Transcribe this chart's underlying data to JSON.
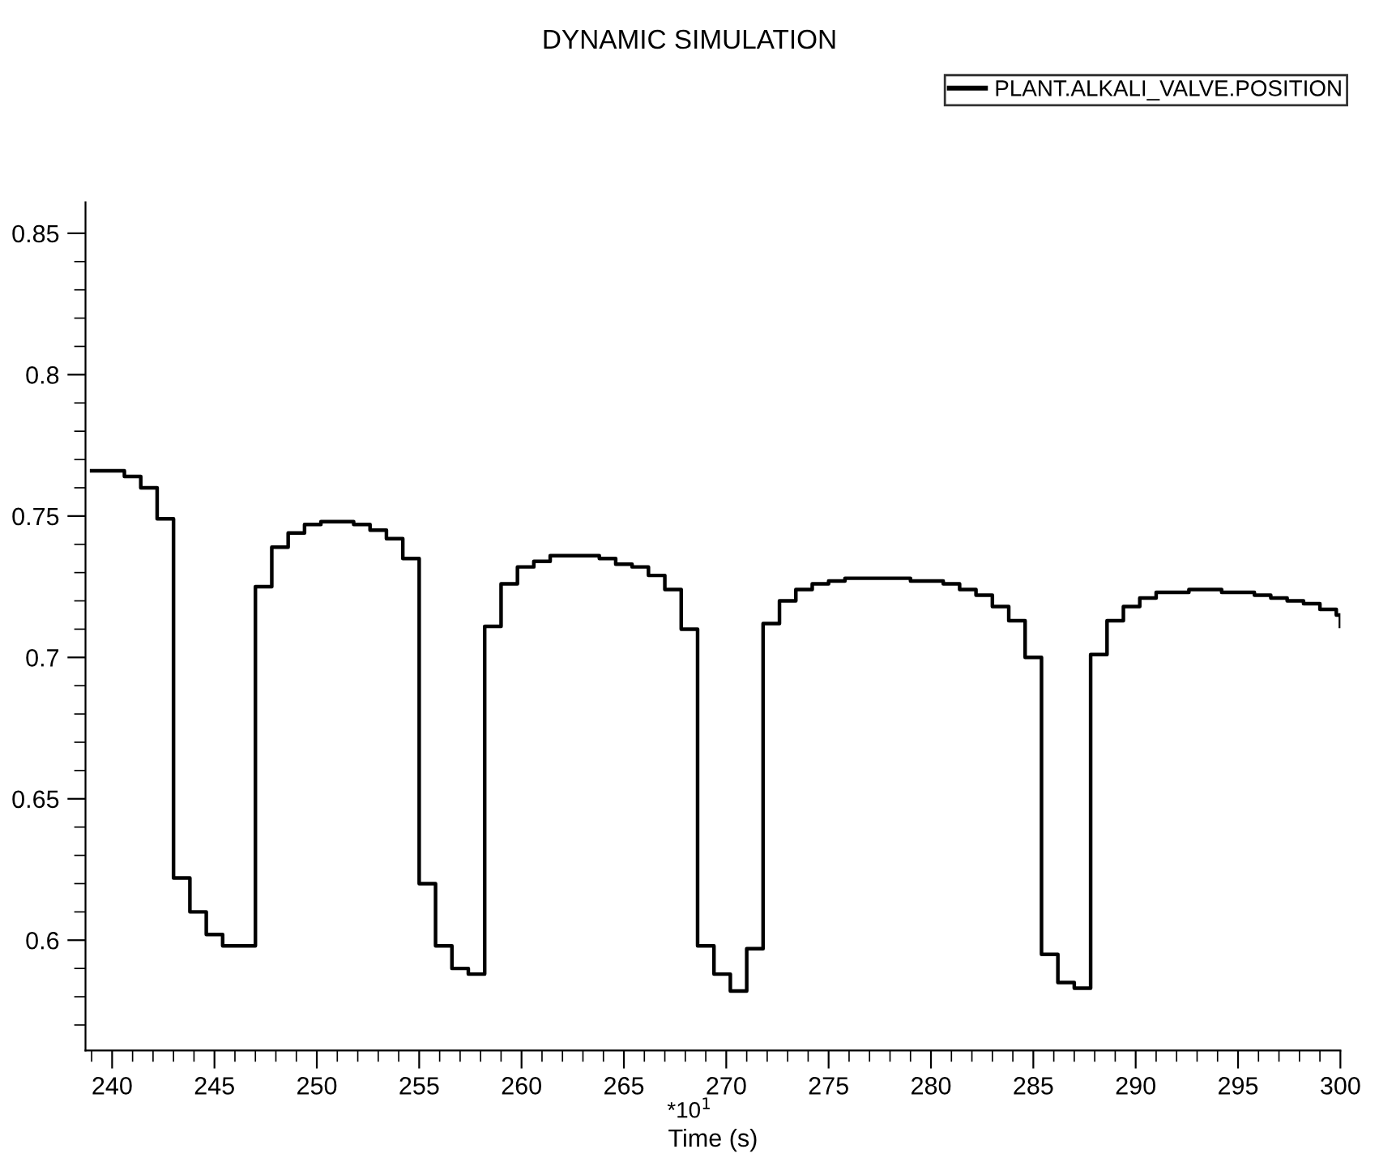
{
  "chart_data": {
    "type": "step",
    "title": "DYNAMIC SIMULATION",
    "xlabel": "Time (s)",
    "annotations": [
      "*10$^{1}$"
    ],
    "x": [
      239.0,
      239.8,
      240.6,
      241.4,
      242.2,
      243.0,
      243.8,
      244.6,
      245.4,
      246.2,
      247.0,
      247.8,
      248.6,
      249.4,
      250.2,
      251.0,
      251.8,
      252.6,
      253.4,
      254.2,
      255.0,
      255.8,
      256.6,
      257.4,
      258.2,
      259.0,
      259.8,
      260.6,
      261.4,
      262.2,
      263.0,
      263.8,
      264.6,
      265.4,
      266.2,
      267.0,
      267.8,
      268.6,
      269.4,
      270.2,
      271.0,
      271.8,
      272.6,
      273.4,
      274.2,
      275.0,
      275.8,
      276.6,
      277.4,
      278.2,
      279.0,
      279.8,
      280.6,
      281.4,
      282.2,
      283.0,
      283.8,
      284.6,
      285.4,
      286.2,
      287.0,
      287.8,
      288.6,
      289.4,
      290.2,
      291.0,
      291.8,
      292.6,
      293.4,
      294.2,
      295.0,
      295.8,
      296.6,
      297.4,
      298.2,
      299.0,
      299.8,
      300.0
    ],
    "series": [
      {
        "name": "PLANT.ALKALI_VALVE.POSITION",
        "color": "#000000",
        "values": [
          0.766,
          0.766,
          0.764,
          0.76,
          0.749,
          0.622,
          0.61,
          0.602,
          0.598,
          0.598,
          0.725,
          0.739,
          0.744,
          0.747,
          0.748,
          0.748,
          0.747,
          0.745,
          0.742,
          0.735,
          0.62,
          0.598,
          0.59,
          0.588,
          0.711,
          0.726,
          0.732,
          0.734,
          0.736,
          0.736,
          0.736,
          0.735,
          0.733,
          0.732,
          0.729,
          0.724,
          0.71,
          0.598,
          0.588,
          0.582,
          0.597,
          0.712,
          0.72,
          0.724,
          0.726,
          0.727,
          0.728,
          0.728,
          0.728,
          0.728,
          0.727,
          0.727,
          0.726,
          0.724,
          0.722,
          0.718,
          0.713,
          0.7,
          0.595,
          0.585,
          0.583,
          0.701,
          0.713,
          0.718,
          0.721,
          0.723,
          0.723,
          0.724,
          0.724,
          0.723,
          0.723,
          0.722,
          0.721,
          0.72,
          0.719,
          0.717,
          0.715,
          0.711
        ]
      }
    ],
    "xlim": [
      238.7,
      300
    ],
    "ylim": [
      0.561,
      0.861
    ],
    "xticks": [
      {
        "value": 239,
        "label": null
      },
      240,
      {
        "value": 241,
        "label": null
      },
      {
        "value": 242,
        "label": null
      },
      {
        "value": 243,
        "label": null
      },
      {
        "value": 244,
        "label": null
      },
      245,
      {
        "value": 246,
        "label": null
      },
      {
        "value": 247,
        "label": null
      },
      {
        "value": 248,
        "label": null
      },
      {
        "value": 249,
        "label": null
      },
      250,
      {
        "value": 251,
        "label": null
      },
      {
        "value": 252,
        "label": null
      },
      {
        "value": 253,
        "label": null
      },
      {
        "value": 254,
        "label": null
      },
      255,
      {
        "value": 256,
        "label": null
      },
      {
        "value": 257,
        "label": null
      },
      {
        "value": 258,
        "label": null
      },
      {
        "value": 259,
        "label": null
      },
      260,
      {
        "value": 261,
        "label": null
      },
      {
        "value": 262,
        "label": null
      },
      {
        "value": 263,
        "label": null
      },
      {
        "value": 264,
        "label": null
      },
      265,
      {
        "value": 266,
        "label": null
      },
      {
        "value": 267,
        "label": null
      },
      {
        "value": 268,
        "label": null
      },
      {
        "value": 269,
        "label": null
      },
      270,
      {
        "value": 271,
        "label": null
      },
      {
        "value": 272,
        "label": null
      },
      {
        "value": 273,
        "label": null
      },
      {
        "value": 274,
        "label": null
      },
      275,
      {
        "value": 276,
        "label": null
      },
      {
        "value": 277,
        "label": null
      },
      {
        "value": 278,
        "label": null
      },
      {
        "value": 279,
        "label": null
      },
      280,
      {
        "value": 281,
        "label": null
      },
      {
        "value": 282,
        "label": null
      },
      {
        "value": 283,
        "label": null
      },
      {
        "value": 284,
        "label": null
      },
      285,
      {
        "value": 286,
        "label": null
      },
      {
        "value": 287,
        "label": null
      },
      {
        "value": 288,
        "label": null
      },
      {
        "value": 289,
        "label": null
      },
      290,
      {
        "value": 291,
        "label": null
      },
      {
        "value": 292,
        "label": null
      },
      {
        "value": 293,
        "label": null
      },
      {
        "value": 294,
        "label": null
      },
      295,
      {
        "value": 296,
        "label": null
      },
      {
        "value": 297,
        "label": null
      },
      {
        "value": 298,
        "label": null
      },
      {
        "value": 299,
        "label": null
      },
      300
    ],
    "yticks": [
      {
        "value": 0.57,
        "label": null
      },
      {
        "value": 0.58,
        "label": null
      },
      {
        "value": 0.59,
        "label": null
      },
      0.6,
      {
        "value": 0.61,
        "label": null
      },
      {
        "value": 0.62,
        "label": null
      },
      {
        "value": 0.63,
        "label": null
      },
      {
        "value": 0.64,
        "label": null
      },
      0.65,
      {
        "value": 0.66,
        "label": null
      },
      {
        "value": 0.67,
        "label": null
      },
      {
        "value": 0.68,
        "label": null
      },
      {
        "value": 0.69,
        "label": null
      },
      0.7,
      {
        "value": 0.71,
        "label": null
      },
      {
        "value": 0.72,
        "label": null
      },
      {
        "value": 0.73,
        "label": null
      },
      {
        "value": 0.74,
        "label": null
      },
      0.75,
      {
        "value": 0.76,
        "label": null
      },
      {
        "value": 0.77,
        "label": null
      },
      {
        "value": 0.78,
        "label": null
      },
      {
        "value": 0.79,
        "label": null
      },
      0.8,
      {
        "value": 0.81,
        "label": null
      },
      {
        "value": 0.82,
        "label": null
      },
      {
        "value": 0.83,
        "label": null
      },
      {
        "value": 0.84,
        "label": null
      },
      0.85
    ],
    "grid": false,
    "legend": "top right",
    "marker": "none",
    "line_style": "solid"
  }
}
